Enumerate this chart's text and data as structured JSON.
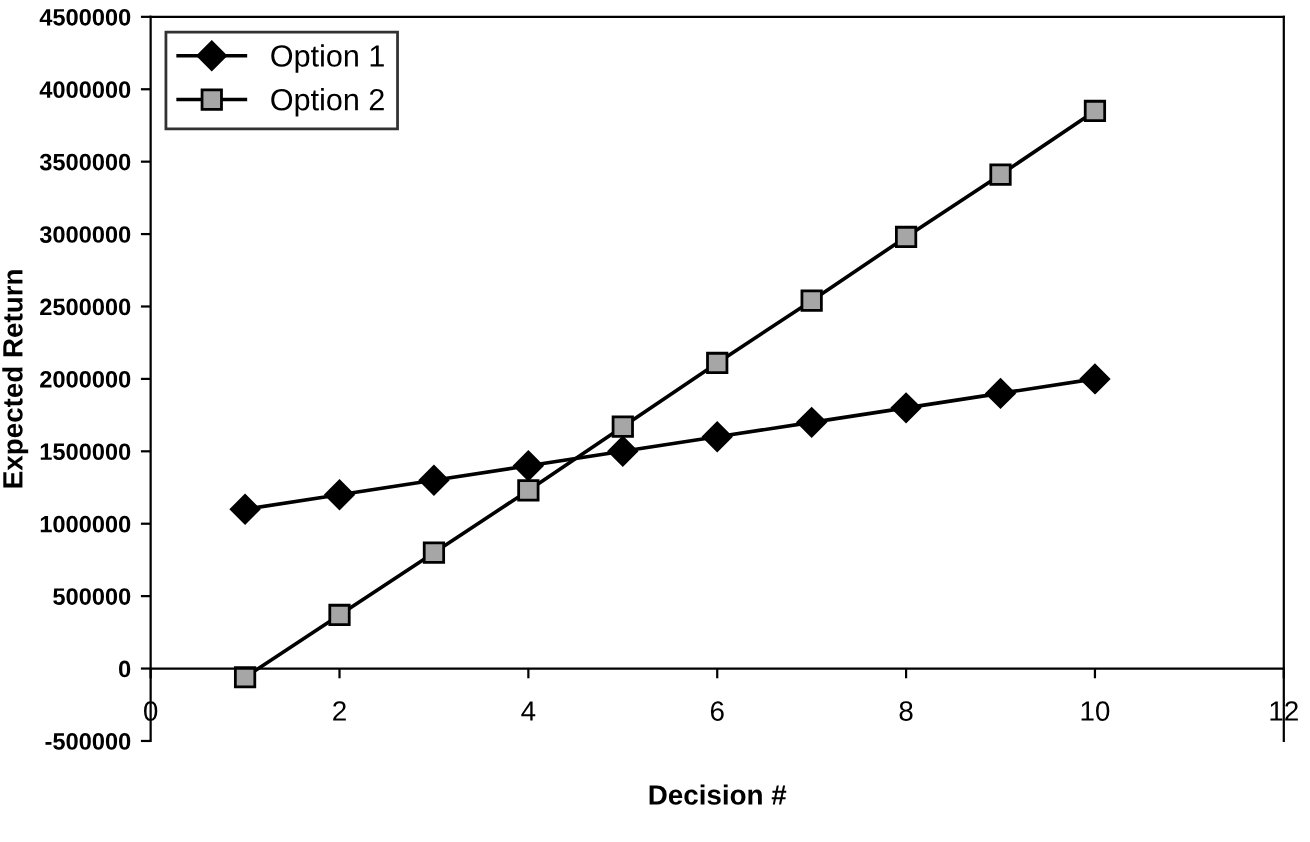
{
  "chart_data": {
    "type": "line",
    "xlabel": "Decision #",
    "ylabel": "Expected Return",
    "x": [
      1,
      2,
      3,
      4,
      5,
      6,
      7,
      8,
      9,
      10
    ],
    "series": [
      {
        "name": "Option 1",
        "color": "#000000",
        "marker": "diamond",
        "values": [
          1100000,
          1200000,
          1300000,
          1400000,
          1500000,
          1600000,
          1700000,
          1800000,
          1900000,
          2000000
        ]
      },
      {
        "name": "Option 2",
        "color": "#a6a6a6",
        "marker": "square",
        "values": [
          -60000,
          370000,
          800000,
          1230000,
          1670000,
          2110000,
          2540000,
          2980000,
          3410000,
          3850000
        ]
      }
    ],
    "xlim": [
      0,
      12
    ],
    "xticks": [
      0,
      2,
      4,
      6,
      8,
      10,
      12
    ],
    "ylim": [
      -500000,
      4500000
    ],
    "yticks": [
      -500000,
      0,
      500000,
      1000000,
      1500000,
      2000000,
      2500000,
      3000000,
      3500000,
      4000000,
      4500000
    ],
    "grid": false,
    "legend": "top left",
    "line_style": "solid"
  }
}
